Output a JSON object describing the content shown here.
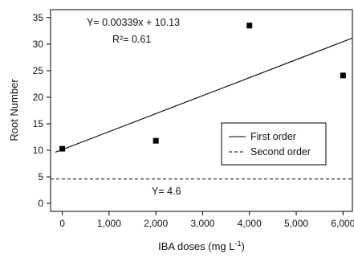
{
  "chart_data": {
    "type": "scatter",
    "title": "",
    "xlabel": "IBA doses (mg L",
    "xlabel_sup": "-1",
    "xlabel_tail": ")",
    "ylabel": "Root Number",
    "xlim": [
      -250,
      6200
    ],
    "ylim": [
      -1.5,
      36.5
    ],
    "x_ticks": [
      0,
      1000,
      2000,
      3000,
      4000,
      5000,
      6000
    ],
    "x_tick_labels": [
      "0",
      "1,000",
      "2,000",
      "3,000",
      "4,000",
      "5,000",
      "6,000"
    ],
    "y_ticks": [
      0,
      5,
      10,
      15,
      20,
      25,
      30,
      35
    ],
    "y_tick_labels": [
      "0",
      "5",
      "10",
      "15",
      "20",
      "25",
      "30",
      "35"
    ],
    "grid": false,
    "series": [
      {
        "kind": "points",
        "marker": "square",
        "x": [
          0,
          2000,
          4000,
          6000
        ],
        "y": [
          10.3,
          11.8,
          33.5,
          24.1
        ]
      },
      {
        "kind": "line",
        "name": "First order",
        "style": "solid",
        "slope": 0.00339,
        "intercept": 10.13
      },
      {
        "kind": "line",
        "name": "Second order",
        "style": "dashed",
        "slope": 0,
        "intercept": 4.6
      }
    ],
    "annotations": {
      "first_equation": "Y= 0.00339x + 10.13",
      "first_r2": "R²= 0.61",
      "second_equation": "Y= 4.6"
    },
    "legend": {
      "placement": "lower-right",
      "entries": [
        "First order",
        "Second order"
      ]
    }
  }
}
